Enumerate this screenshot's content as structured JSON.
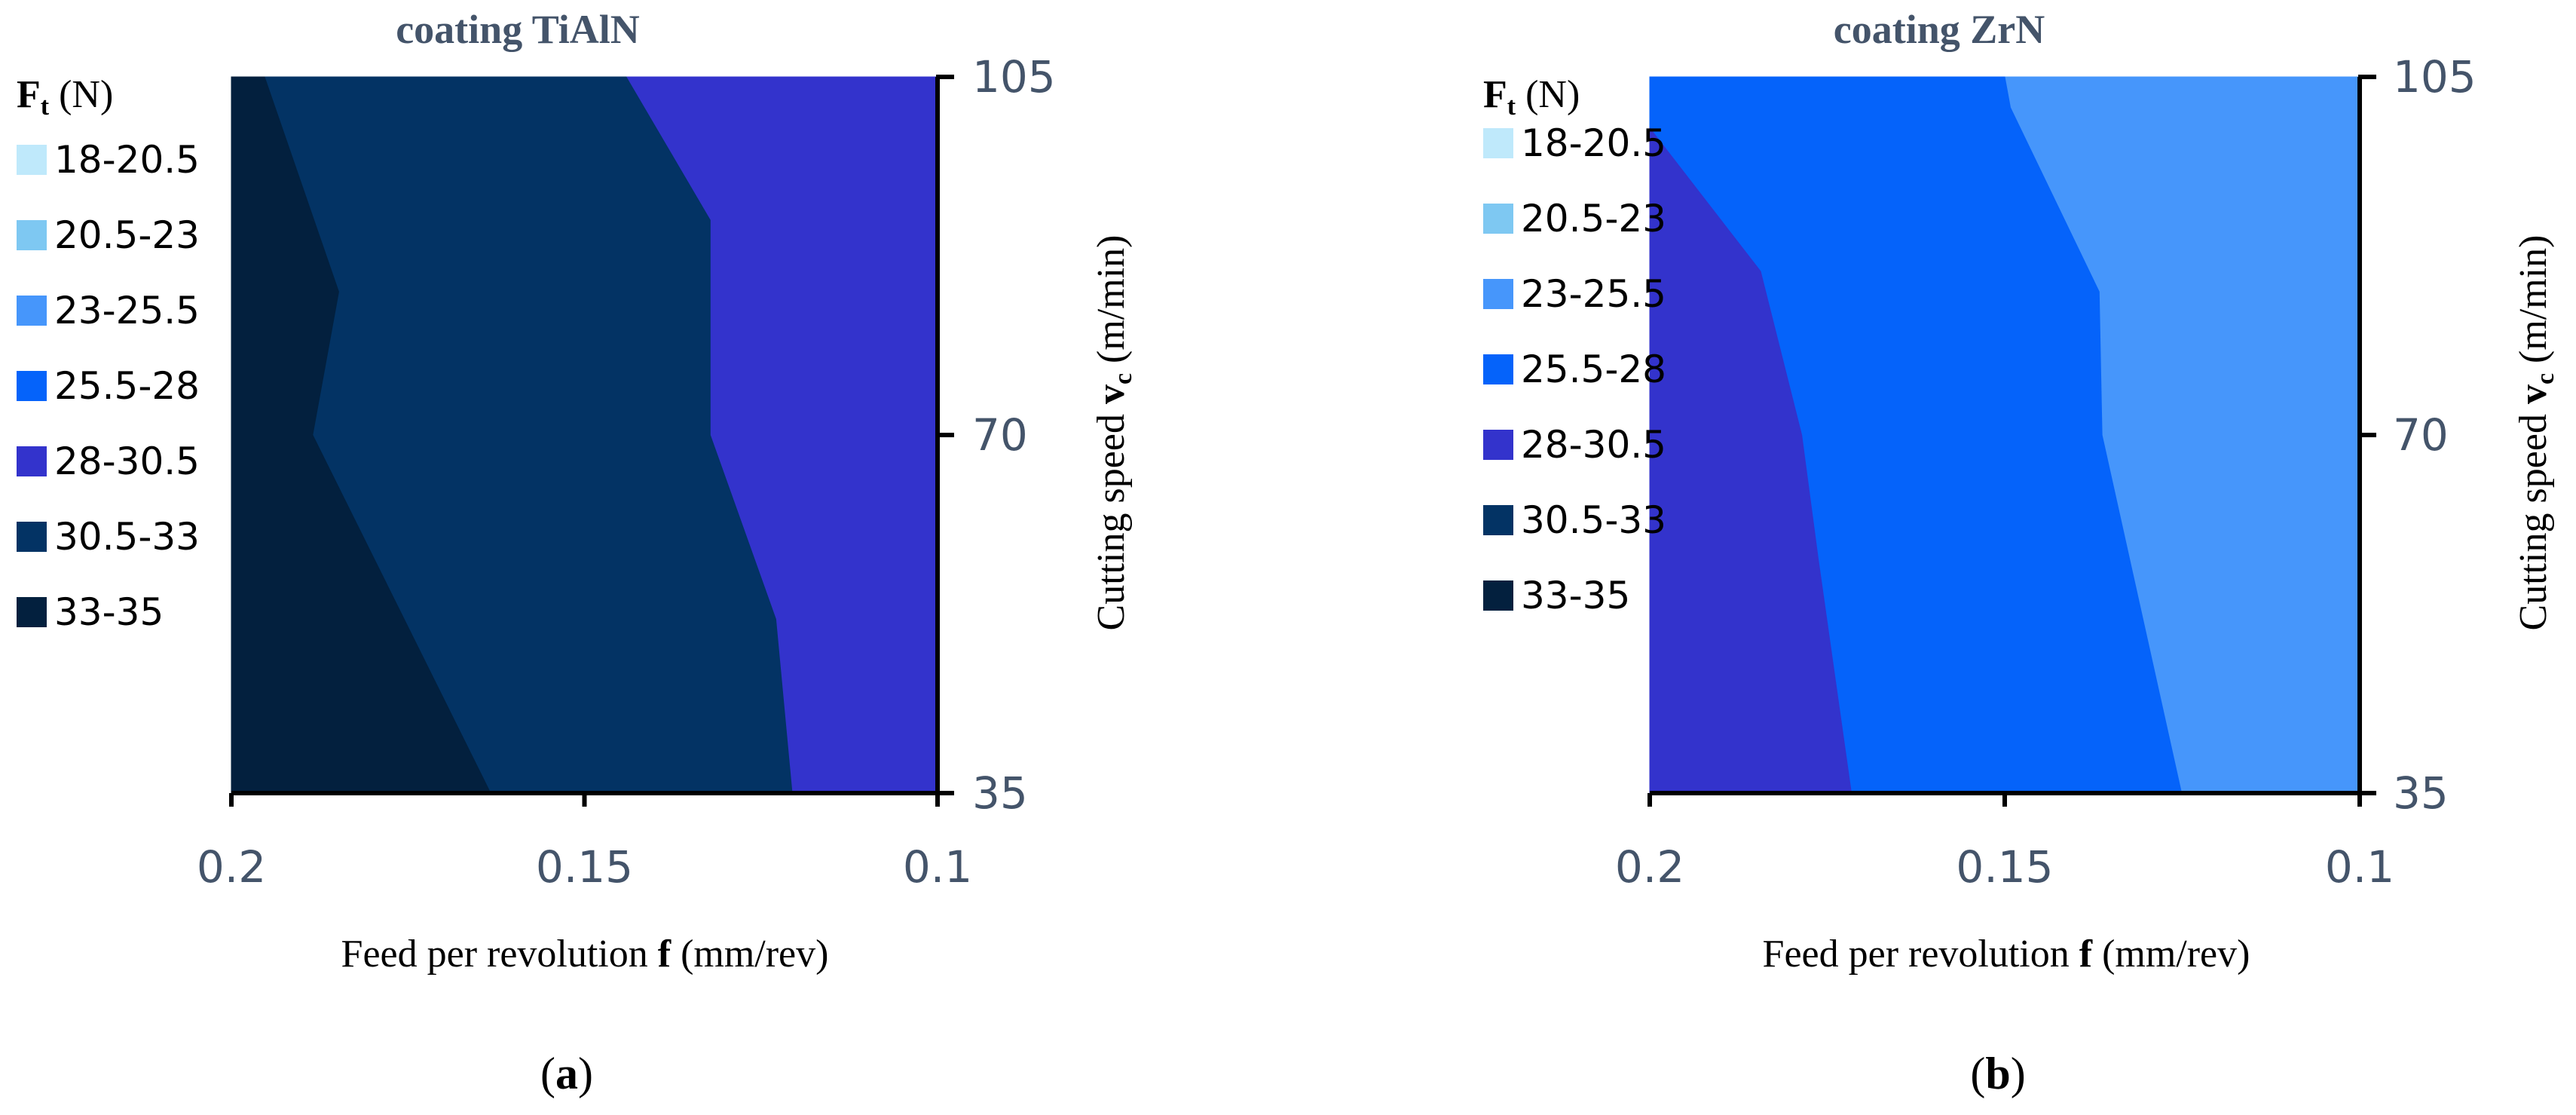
{
  "panels": [
    {
      "id": "a",
      "caption": "a",
      "title": "coating TiAlN",
      "legend_title_main": "F",
      "legend_title_sub": "t",
      "legend_title_unit": " (N)",
      "x_axis_label_pre": "Feed per revolution ",
      "x_axis_label_bold": "f",
      "x_axis_label_post": " (mm/rev)",
      "y_axis_label_pre": "Cutting speed ",
      "y_axis_label_bold": "v",
      "y_axis_label_sub": "c",
      "y_axis_label_post": " (m/min)"
    },
    {
      "id": "b",
      "caption": "b",
      "title": "coating ZrN",
      "legend_title_main": "F",
      "legend_title_sub": "t",
      "legend_title_unit": " (N)",
      "x_axis_label_pre": "Feed per revolution ",
      "x_axis_label_bold": "f",
      "x_axis_label_post": " (mm/rev)",
      "y_axis_label_pre": "Cutting speed ",
      "y_axis_label_bold": "v",
      "y_axis_label_sub": "c",
      "y_axis_label_post": " (m/min)"
    }
  ],
  "colors": {
    "text": "#44546a",
    "axis": "#000000",
    "bands": {
      "18-20.5": "#bfe9fb",
      "20.5-23": "#7ec8f2",
      "23-25.5": "#4696fb",
      "25.5-28": "#0563fa",
      "28-30.5": "#3333cc",
      "30.5-33": "#033364",
      "33-35": "#03203e"
    }
  },
  "chart_data": [
    {
      "type": "contour",
      "title": "coating TiAlN",
      "xlabel": "Feed per revolution f (mm/rev)",
      "ylabel": "Cutting speed vc (m/min)",
      "x_ticks": [
        "0.2",
        "0.15",
        "0.1"
      ],
      "y_ticks": [
        "35",
        "70",
        "105"
      ],
      "xlim": [
        0.2,
        0.1
      ],
      "ylim": [
        35,
        105
      ],
      "y_axis_side": "right",
      "legend_title": "Ft (N)",
      "legend": [
        "18-20.5",
        "20.5-23",
        "23-25.5",
        "25.5-28",
        "28-30.5",
        "30.5-33",
        "33-35"
      ],
      "regions": [
        {
          "band": "28-30.5",
          "polygon": [
            [
              0.2,
              35
            ],
            [
              0.1,
              35
            ],
            [
              0.1,
              105
            ],
            [
              0.2,
              105
            ]
          ]
        },
        {
          "band": "30.5-33",
          "polygon": [
            [
              0.2,
              35
            ],
            [
              0.1206,
              35
            ],
            [
              0.1229,
              52
            ],
            [
              0.1322,
              70
            ],
            [
              0.1322,
              84
            ],
            [
              0.1322,
              91
            ],
            [
              0.1441,
              105
            ],
            [
              0.2,
              105
            ]
          ]
        },
        {
          "band": "33-35",
          "polygon": [
            [
              0.2,
              35
            ],
            [
              0.1633,
              35
            ],
            [
              0.1885,
              70
            ],
            [
              0.1848,
              84
            ],
            [
              0.1953,
              105
            ],
            [
              0.2,
              105
            ]
          ]
        }
      ]
    },
    {
      "type": "contour",
      "title": "coating ZrN",
      "xlabel": "Feed per revolution f (mm/rev)",
      "ylabel": "Cutting speed vc (m/min)",
      "x_ticks": [
        "0.2",
        "0.15",
        "0.1"
      ],
      "y_ticks": [
        "35",
        "70",
        "105"
      ],
      "xlim": [
        0.2,
        0.1
      ],
      "ylim": [
        35,
        105
      ],
      "y_axis_side": "right",
      "legend_title": "Ft (N)",
      "legend": [
        "18-20.5",
        "20.5-23",
        "23-25.5",
        "25.5-28",
        "28-30.5",
        "30.5-33",
        "33-35"
      ],
      "regions": [
        {
          "band": "23-25.5",
          "polygon": [
            [
              0.2,
              35
            ],
            [
              0.1,
              35
            ],
            [
              0.1,
              105
            ],
            [
              0.2,
              105
            ]
          ]
        },
        {
          "band": "25.5-28",
          "polygon": [
            [
              0.2,
              35
            ],
            [
              0.1251,
              35
            ],
            [
              0.1363,
              70
            ],
            [
              0.1367,
              84
            ],
            [
              0.1492,
              102
            ],
            [
              0.15,
              105
            ],
            [
              0.2,
              105
            ]
          ]
        },
        {
          "band": "28-30.5",
          "polygon": [
            [
              0.2,
              35
            ],
            [
              0.1716,
              35
            ],
            [
              0.1763,
              58
            ],
            [
              0.1786,
              70
            ],
            [
              0.1844,
              86
            ],
            [
              0.2,
              100
            ]
          ]
        }
      ]
    }
  ]
}
